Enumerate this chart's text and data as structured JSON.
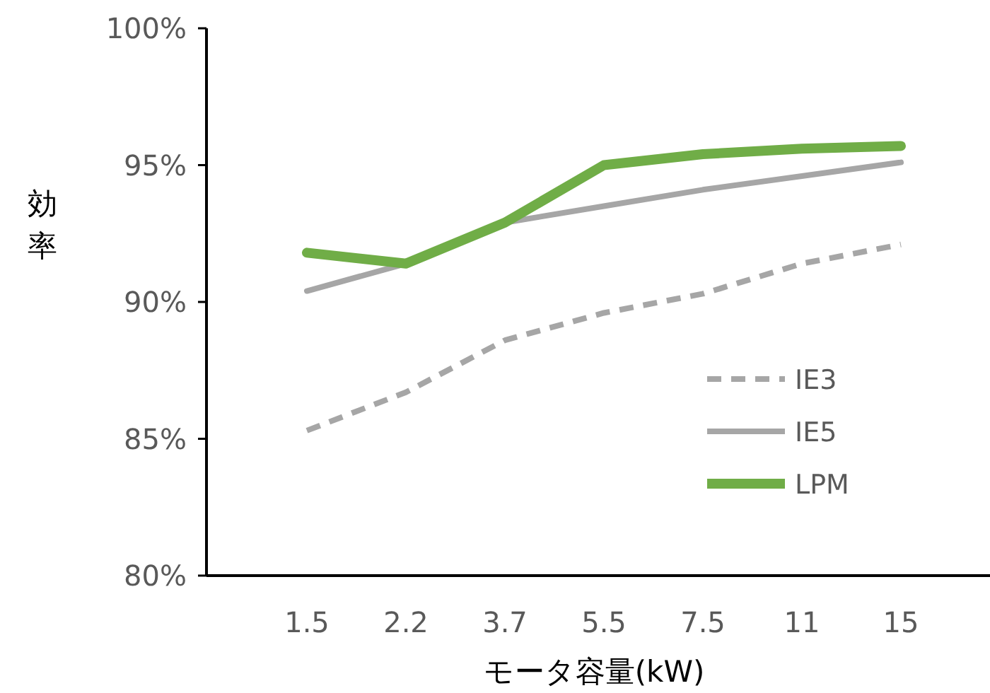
{
  "chart_data": {
    "type": "line",
    "xlabel": "モータ容量(kW)",
    "ylabel": "効率",
    "categories": [
      "1.5",
      "2.2",
      "3.7",
      "5.5",
      "7.5",
      "11",
      "15"
    ],
    "series": [
      {
        "name": "IE3",
        "color": "#a6a6a6",
        "line_style": "dashed",
        "values": [
          85.3,
          86.7,
          88.6,
          89.6,
          90.3,
          91.4,
          92.1
        ]
      },
      {
        "name": "IE5",
        "color": "#a6a6a6",
        "line_style": "solid",
        "values": [
          90.4,
          91.4,
          92.9,
          93.5,
          94.1,
          94.6,
          95.1
        ]
      },
      {
        "name": "LPM",
        "color": "#70ad47",
        "line_style": "solid",
        "values": [
          91.8,
          91.4,
          92.9,
          95.0,
          95.4,
          95.6,
          95.7
        ]
      }
    ],
    "ylim": [
      80,
      100
    ],
    "yticks": [
      {
        "value": 80,
        "label": "80%"
      },
      {
        "value": 85,
        "label": "85%"
      },
      {
        "value": 90,
        "label": "90%"
      },
      {
        "value": 95,
        "label": "95%"
      },
      {
        "value": 100,
        "label": "100%"
      }
    ],
    "grid": false,
    "legend": "bottom right"
  }
}
